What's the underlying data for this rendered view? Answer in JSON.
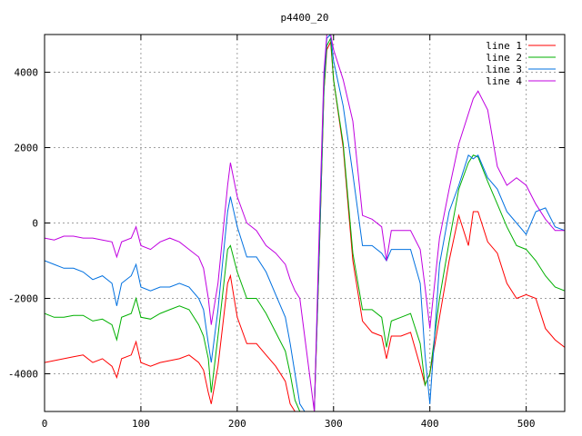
{
  "chart_data": {
    "type": "line",
    "title": "p4400_20",
    "xlabel": "",
    "ylabel": "",
    "xlim": [
      0,
      540
    ],
    "ylim": [
      -5000,
      5000
    ],
    "xticks": [
      0,
      100,
      200,
      300,
      400,
      500
    ],
    "yticks": [
      -4000,
      -2000,
      0,
      2000,
      4000
    ],
    "grid": true,
    "legend_position": "top-right",
    "series": [
      {
        "name": "line 1",
        "color": "#ff0000",
        "x": [
          0,
          10,
          20,
          30,
          40,
          50,
          60,
          70,
          75,
          80,
          90,
          95,
          100,
          110,
          120,
          130,
          140,
          150,
          160,
          165,
          170,
          173,
          180,
          190,
          193,
          200,
          210,
          220,
          230,
          240,
          250,
          255,
          260,
          265,
          270,
          280,
          285,
          290,
          293,
          297,
          300,
          310,
          320,
          330,
          340,
          350,
          355,
          360,
          370,
          380,
          390,
          395,
          400,
          410,
          420,
          430,
          440,
          445,
          450,
          460,
          470,
          480,
          490,
          500,
          510,
          520,
          530,
          540
        ],
        "y": [
          -3700,
          -3650,
          -3600,
          -3550,
          -3500,
          -3700,
          -3600,
          -3800,
          -4100,
          -3600,
          -3500,
          -3150,
          -3700,
          -3800,
          -3700,
          -3650,
          -3600,
          -3500,
          -3700,
          -3900,
          -4500,
          -4800,
          -3800,
          -1600,
          -1400,
          -2500,
          -3200,
          -3200,
          -3500,
          -3800,
          -4200,
          -4800,
          -5000,
          -5000,
          -5000,
          -5000,
          -1000,
          3500,
          4600,
          4800,
          3800,
          2000,
          -1000,
          -2600,
          -2900,
          -3000,
          -3600,
          -3000,
          -3000,
          -2900,
          -3800,
          -4300,
          -4000,
          -2500,
          -1000,
          200,
          -600,
          300,
          300,
          -500,
          -800,
          -1600,
          -2000,
          -1900,
          -2000,
          -2800,
          -3100,
          -3300
        ]
      },
      {
        "name": "line 2",
        "color": "#00b000",
        "x": [
          0,
          10,
          20,
          30,
          40,
          50,
          60,
          70,
          75,
          80,
          90,
          95,
          100,
          110,
          120,
          130,
          140,
          150,
          160,
          165,
          170,
          173,
          180,
          190,
          193,
          200,
          210,
          220,
          230,
          240,
          250,
          255,
          260,
          265,
          270,
          280,
          285,
          290,
          293,
          297,
          300,
          310,
          320,
          330,
          340,
          350,
          355,
          360,
          370,
          380,
          390,
          395,
          400,
          410,
          420,
          430,
          440,
          445,
          450,
          460,
          470,
          480,
          490,
          500,
          510,
          520,
          530,
          540
        ],
        "y": [
          -2400,
          -2500,
          -2500,
          -2450,
          -2450,
          -2600,
          -2550,
          -2700,
          -3100,
          -2500,
          -2400,
          -2000,
          -2500,
          -2550,
          -2400,
          -2300,
          -2200,
          -2300,
          -2700,
          -3000,
          -3600,
          -4500,
          -3000,
          -700,
          -600,
          -1300,
          -2000,
          -2000,
          -2400,
          -2900,
          -3400,
          -4000,
          -4700,
          -5000,
          -5000,
          -5000,
          -1000,
          3500,
          4700,
          4900,
          3800,
          2100,
          -800,
          -2300,
          -2300,
          -2500,
          -3300,
          -2600,
          -2500,
          -2400,
          -3200,
          -4300,
          -4000,
          -2000,
          -500,
          900,
          1600,
          1800,
          1750,
          1100,
          500,
          -100,
          -600,
          -700,
          -1000,
          -1400,
          -1700,
          -1800
        ]
      },
      {
        "name": "line 3",
        "color": "#0070e0",
        "x": [
          0,
          10,
          20,
          30,
          40,
          50,
          60,
          70,
          75,
          80,
          90,
          95,
          100,
          110,
          120,
          130,
          140,
          150,
          160,
          165,
          170,
          173,
          180,
          190,
          193,
          200,
          210,
          220,
          230,
          240,
          250,
          255,
          260,
          265,
          270,
          280,
          285,
          290,
          293,
          297,
          300,
          310,
          320,
          330,
          340,
          350,
          355,
          360,
          370,
          380,
          390,
          395,
          400,
          410,
          420,
          430,
          440,
          445,
          450,
          460,
          470,
          480,
          490,
          500,
          510,
          520,
          530,
          540
        ],
        "y": [
          -1000,
          -1100,
          -1200,
          -1200,
          -1300,
          -1500,
          -1400,
          -1600,
          -2200,
          -1600,
          -1400,
          -1100,
          -1700,
          -1800,
          -1700,
          -1700,
          -1600,
          -1700,
          -2000,
          -2300,
          -3200,
          -3700,
          -2300,
          300,
          700,
          -100,
          -900,
          -900,
          -1300,
          -1900,
          -2500,
          -3200,
          -4000,
          -4800,
          -5000,
          -5000,
          -700,
          3800,
          4900,
          5000,
          4300,
          3100,
          1300,
          -600,
          -600,
          -800,
          -1000,
          -700,
          -700,
          -700,
          -1600,
          -3500,
          -4800,
          -1100,
          300,
          1000,
          1800,
          1700,
          1800,
          1200,
          900,
          300,
          0,
          -300,
          300,
          400,
          -100,
          -200
        ]
      },
      {
        "name": "line 4",
        "color": "#c000e0",
        "x": [
          0,
          10,
          20,
          30,
          40,
          50,
          60,
          70,
          75,
          80,
          90,
          95,
          100,
          110,
          120,
          130,
          140,
          150,
          160,
          165,
          170,
          173,
          180,
          190,
          193,
          200,
          210,
          220,
          230,
          240,
          250,
          255,
          260,
          265,
          270,
          280,
          285,
          290,
          293,
          297,
          300,
          310,
          320,
          330,
          340,
          350,
          355,
          360,
          370,
          380,
          390,
          395,
          400,
          410,
          420,
          430,
          440,
          445,
          450,
          460,
          470,
          480,
          490,
          500,
          510,
          520,
          530,
          540
        ],
        "y": [
          -400,
          -450,
          -350,
          -350,
          -400,
          -400,
          -450,
          -500,
          -900,
          -500,
          -400,
          -100,
          -600,
          -700,
          -500,
          -400,
          -500,
          -700,
          -900,
          -1200,
          -2000,
          -2700,
          -1600,
          1000,
          1600,
          700,
          0,
          -200,
          -600,
          -800,
          -1100,
          -1500,
          -1800,
          -2000,
          -3000,
          -5000,
          -300,
          4000,
          5000,
          5000,
          4600,
          3800,
          2700,
          200,
          100,
          -100,
          -1000,
          -200,
          -200,
          -200,
          -700,
          -1700,
          -2800,
          -400,
          900,
          2100,
          2900,
          3300,
          3500,
          3000,
          1500,
          1000,
          1200,
          1000,
          500,
          100,
          -200,
          -200
        ]
      }
    ]
  }
}
